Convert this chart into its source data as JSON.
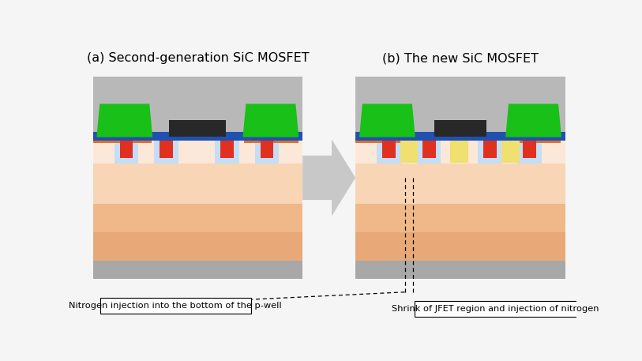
{
  "title_a": "(a) Second-generation SiC MOSFET",
  "title_b": "(b) The new SiC MOSFET",
  "label_a": "Nitrogen injection into the bottom of the p-well",
  "label_b": "Shrink of JFET region and injection of nitrogen",
  "bg_color": "#f5f5f5",
  "gray_panel": "#b0b0b0",
  "gray_top_area": "#b8b8b8",
  "gray_bottom": "#a8a8a8",
  "col_bulk_dark": "#e8a878",
  "col_bulk_med": "#f0b888",
  "col_epi_light": "#f8d5b5",
  "col_pwell_light": "#fce8d8",
  "col_light_blue_well": "#c5ddf5",
  "col_blue_layer": "#2050b0",
  "col_red": "#e03020",
  "col_orange_under_gate": "#e07030",
  "col_green": "#18c018",
  "col_black_poly": "#282828",
  "col_yellow_jfet": "#f0e070",
  "col_arrow": "#c8c8c8",
  "col_white": "#ffffff",
  "col_black": "#000000"
}
